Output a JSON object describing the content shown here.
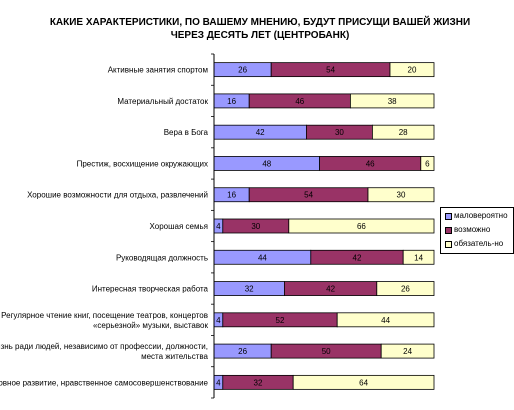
{
  "chart_data": {
    "type": "bar",
    "orientation": "horizontal",
    "stacked": "percent",
    "title": "КАКИЕ ХАРАКТЕРИСТИКИ, ПО ВАШЕМУ МНЕНИЮ, БУДУТ ПРИСУЩИ ВАШЕЙ ЖИЗНИ ЧЕРЕЗ ДЕСЯТЬ ЛЕТ (ЦЕНТРОБАНК)",
    "categories": [
      [
        "Активные занятия спортом"
      ],
      [
        "Материальный достаток"
      ],
      [
        "Вера в Бога"
      ],
      [
        "Престиж, восхищение окружающих"
      ],
      [
        "Хорошие возможности для отдыха, развлечений"
      ],
      [
        "Хорошая семья"
      ],
      [
        "Руководящая должность"
      ],
      [
        "Интересная творческая работа"
      ],
      [
        "Регулярное чтение книг, посещение театров, концертов",
        "«серьезной» музыки, выставок"
      ],
      [
        "Жизнь ради людей, независимо от профессии, должности,",
        "места жительства"
      ],
      [
        "Духовное развитие, нравственное самосовершенствование"
      ]
    ],
    "series": [
      {
        "name": "маловероятно",
        "color": "#9999FF",
        "values": [
          26,
          16,
          42,
          48,
          16,
          4,
          44,
          32,
          4,
          26,
          4
        ]
      },
      {
        "name": "возможно",
        "color": "#993366",
        "values": [
          54,
          46,
          30,
          46,
          54,
          30,
          42,
          42,
          52,
          50,
          32
        ]
      },
      {
        "name": "обязатель-но",
        "color": "#FFFFCC",
        "values": [
          20,
          38,
          28,
          6,
          30,
          66,
          14,
          26,
          44,
          24,
          64
        ]
      }
    ],
    "legend_position": "right",
    "grid": false
  }
}
